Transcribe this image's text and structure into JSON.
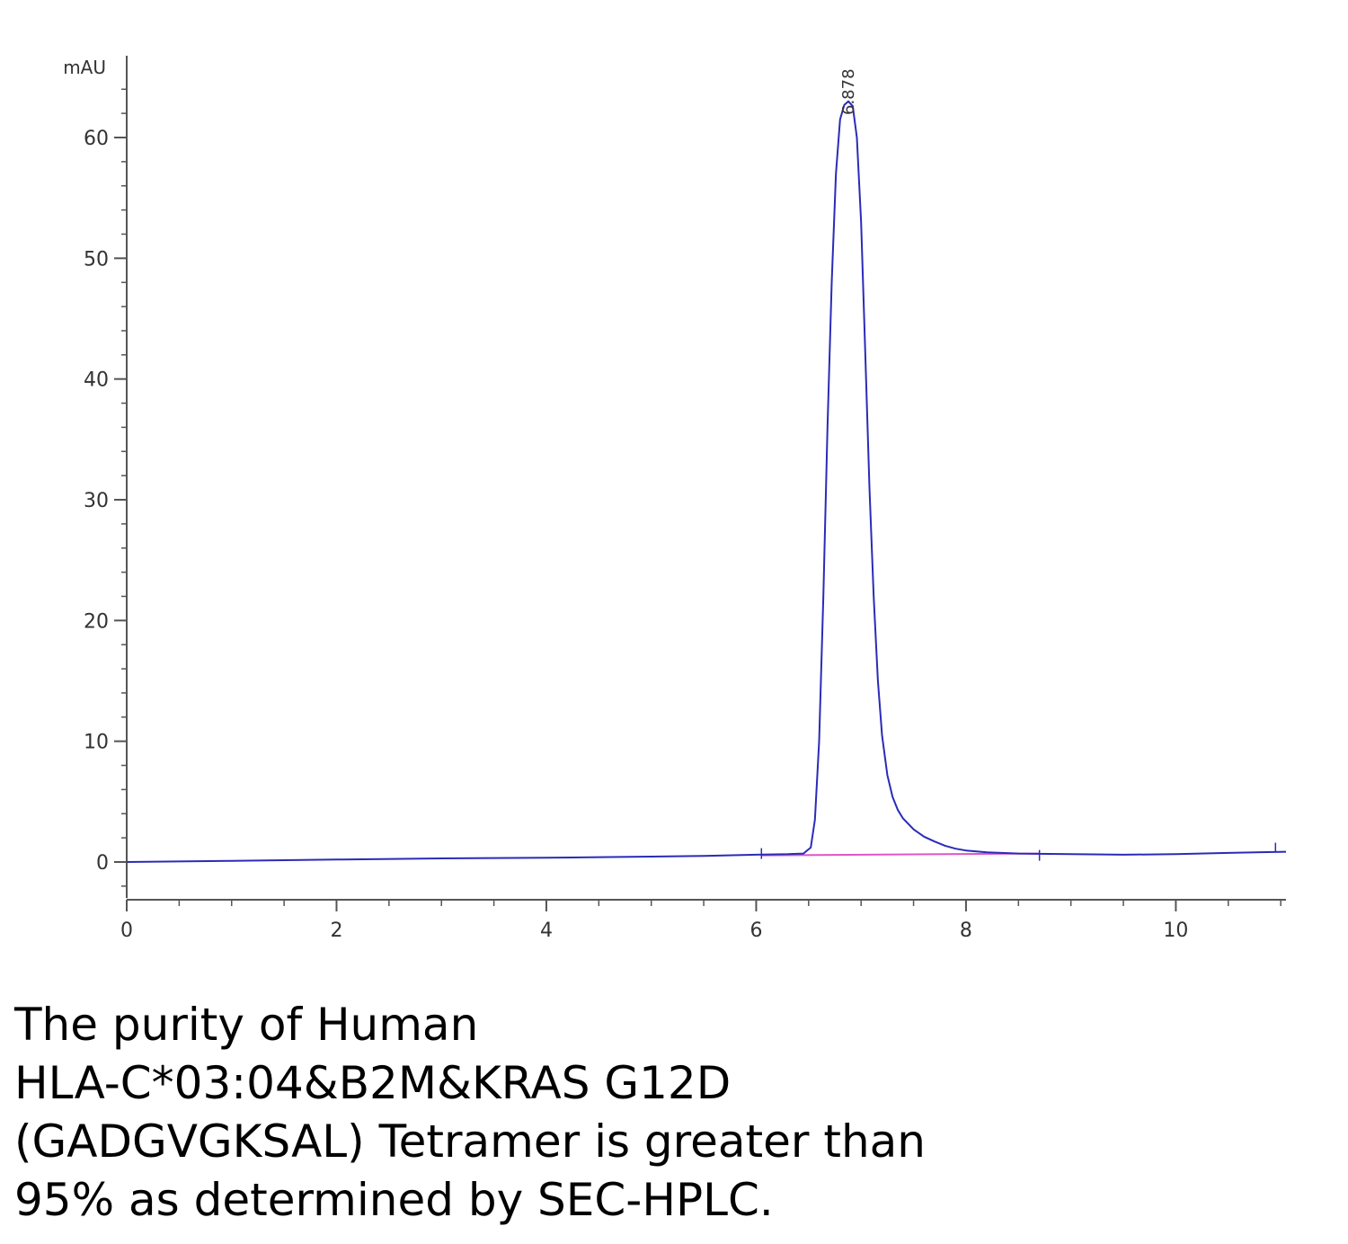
{
  "chart_data": {
    "type": "line",
    "y_unit": "mAU",
    "xlim": [
      0,
      11.05
    ],
    "ylim": [
      -3,
      66
    ],
    "x_ticks": [
      0,
      2,
      4,
      6,
      8,
      10
    ],
    "y_ticks": [
      0,
      10,
      20,
      30,
      40,
      50,
      60
    ],
    "grid": false,
    "peak_label": "6.878",
    "peak_x": 6.878,
    "series": [
      {
        "color": "#2b2bb8",
        "x": [
          0,
          1,
          2,
          3,
          4,
          5,
          5.5,
          6.0,
          6.3,
          6.45,
          6.52,
          6.56,
          6.6,
          6.64,
          6.68,
          6.72,
          6.76,
          6.8,
          6.84,
          6.878,
          6.92,
          6.96,
          7.0,
          7.04,
          7.08,
          7.12,
          7.16,
          7.2,
          7.25,
          7.3,
          7.35,
          7.4,
          7.5,
          7.6,
          7.7,
          7.8,
          7.9,
          8.0,
          8.2,
          8.5,
          9.0,
          9.5,
          10.0,
          10.5,
          11.05
        ],
        "y": [
          0.0,
          0.1,
          0.2,
          0.3,
          0.35,
          0.45,
          0.5,
          0.6,
          0.65,
          0.7,
          1.2,
          3.5,
          10,
          22,
          36,
          48,
          57,
          61.5,
          62.7,
          63.0,
          62.6,
          60,
          53,
          42,
          31,
          22,
          15,
          10.5,
          7.2,
          5.4,
          4.3,
          3.6,
          2.7,
          2.1,
          1.7,
          1.35,
          1.1,
          0.95,
          0.8,
          0.7,
          0.65,
          0.6,
          0.65,
          0.75,
          0.85
        ]
      },
      {
        "color": "#e055c8",
        "x": [
          6.05,
          8.7
        ],
        "y": [
          0.55,
          0.7
        ]
      }
    ]
  },
  "caption": {
    "lines": [
      "The purity of Human",
      "HLA-C*03:04&B2M&KRAS G12D",
      "(GADGVGKSAL) Tetramer is greater than",
      "95% as determined by SEC-HPLC."
    ]
  }
}
